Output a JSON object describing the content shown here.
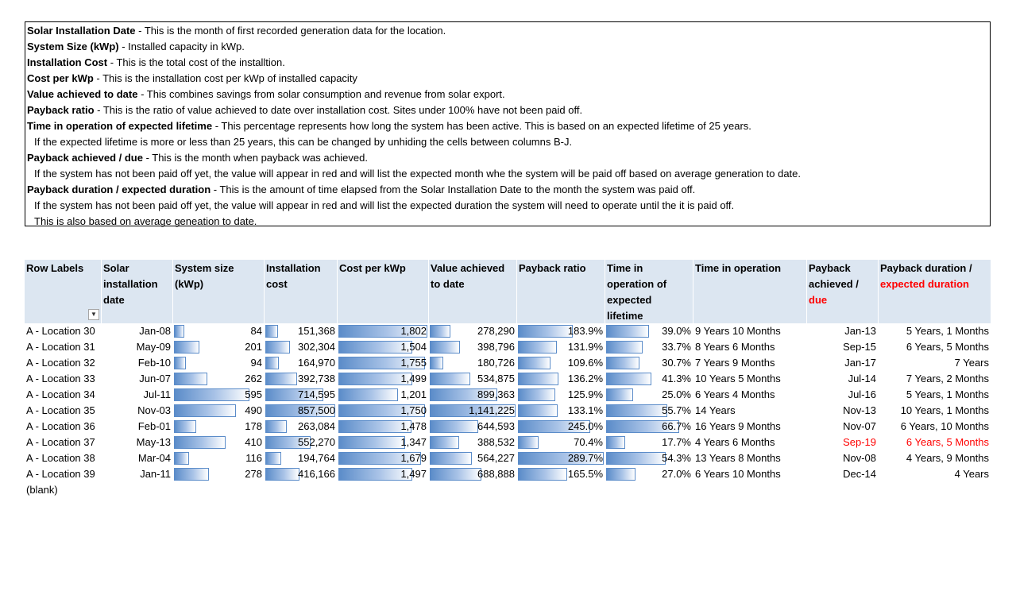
{
  "notes": [
    {
      "bold": "Solar Installation Date",
      "text": " - This is the month of first recorded generation data for the location.",
      "indent": false
    },
    {
      "bold": "System Size (kWp)",
      "text": " - Installed capacity in kWp.",
      "indent": false
    },
    {
      "bold": "Installation Cost",
      "text": " - This is the total cost of the installtion.",
      "indent": false
    },
    {
      "bold": "Cost per kWp",
      "text": " - This is the installation cost per kWp of installed capacity",
      "indent": false
    },
    {
      "bold": "Value achieved to date",
      "text": " - This combines savings from solar consumption and revenue from solar export.",
      "indent": false
    },
    {
      "bold": "Payback ratio",
      "text": " - This is the ratio of value achieved to date over installation cost. Sites under 100% have not been paid off.",
      "indent": false
    },
    {
      "bold": "Time in operation of expected lifetime",
      "text": " - This percentage represents how long the system has been active. This is based on an expected lifetime of 25 years.",
      "indent": false
    },
    {
      "bold": "",
      "text": "If the expected lifetime is more or less than 25 years, this can be changed by unhiding the cells between columns B-J.",
      "indent": true
    },
    {
      "bold": "Payback achieved / due",
      "text": " - This is the month when payback was achieved.",
      "indent": false
    },
    {
      "bold": "",
      "text": "If the system has not been paid off yet, the value will appear in red and will list the expected month whe the system will be paid off based on average generation to date.",
      "indent": true
    },
    {
      "bold": "Payback duration / expected duration",
      "text": " - This is the amount of time elapsed from the Solar Installation Date to the month the system was paid off.",
      "indent": false
    },
    {
      "bold": "",
      "text": "If the system has not been paid off yet, the value will appear in red and will list the expected duration the system will need to operate until the it is paid off.",
      "indent": true
    },
    {
      "bold": "",
      "text": "This is also based on average geneation to date.",
      "indent": true
    }
  ],
  "headers": {
    "row_labels": "Row Labels",
    "solar_date": [
      "Solar",
      "installation",
      "date"
    ],
    "system_size": [
      "System size",
      "(kWp)"
    ],
    "install_cost": [
      "Installation",
      "cost"
    ],
    "cost_per_kwp": [
      "Cost per kWp"
    ],
    "value_achieved": [
      "Value achieved",
      "to date"
    ],
    "payback_ratio": [
      "Payback ratio"
    ],
    "time_pct": [
      "Time in",
      "operation of",
      "expected",
      "lifetime"
    ],
    "time_op": [
      "Time in operation"
    ],
    "payback_ach": [
      "Payback",
      "achieved /"
    ],
    "payback_ach_red": "due",
    "payback_dur": [
      "Payback duration /"
    ],
    "payback_dur_red": "expected duration",
    "filter_icon": "dropdown-arrow"
  },
  "rows": [
    {
      "label": "A - Location 30",
      "date": "Jan-08",
      "size": "84",
      "size_v": 84,
      "cost": "151,368",
      "cost_v": 151368,
      "cpk": "1,802",
      "cpk_v": 1802,
      "value": "278,290",
      "value_v": 278290,
      "ratio": "183.9%",
      "ratio_v": 183.9,
      "time_pct": "39.0%",
      "time_op": "9 Years 10 Months",
      "payback": "Jan-13",
      "duration": "5 Years, 1 Months",
      "due": false
    },
    {
      "label": "A - Location 31",
      "date": "May-09",
      "size": "201",
      "size_v": 201,
      "cost": "302,304",
      "cost_v": 302304,
      "cpk": "1,504",
      "cpk_v": 1504,
      "value": "398,796",
      "value_v": 398796,
      "ratio": "131.9%",
      "ratio_v": 131.9,
      "time_pct": "33.7%",
      "time_op": "8 Years 6 Months",
      "payback": "Sep-15",
      "duration": "6 Years, 5 Months",
      "due": false
    },
    {
      "label": "A - Location 32",
      "date": "Feb-10",
      "size": "94",
      "size_v": 94,
      "cost": "164,970",
      "cost_v": 164970,
      "cpk": "1,755",
      "cpk_v": 1755,
      "value": "180,726",
      "value_v": 180726,
      "ratio": "109.6%",
      "ratio_v": 109.6,
      "time_pct": "30.7%",
      "time_op": "7 Years 9 Months",
      "payback": "Jan-17",
      "duration": "7 Years",
      "due": false
    },
    {
      "label": "A - Location 33",
      "date": "Jun-07",
      "size": "262",
      "size_v": 262,
      "cost": "392,738",
      "cost_v": 392738,
      "cpk": "1,499",
      "cpk_v": 1499,
      "value": "534,875",
      "value_v": 534875,
      "ratio": "136.2%",
      "ratio_v": 136.2,
      "time_pct": "41.3%",
      "time_op": "10 Years 5 Months",
      "payback": "Jul-14",
      "duration": "7 Years, 2 Months",
      "due": false
    },
    {
      "label": "A - Location 34",
      "date": "Jul-11",
      "size": "595",
      "size_v": 595,
      "cost": "714,595",
      "cost_v": 714595,
      "cpk": "1,201",
      "cpk_v": 1201,
      "value": "899,363",
      "value_v": 899363,
      "ratio": "125.9%",
      "ratio_v": 125.9,
      "time_pct": "25.0%",
      "time_op": "6 Years 4 Months",
      "payback": "Jul-16",
      "duration": "5 Years, 1 Months",
      "due": false
    },
    {
      "label": "A - Location 35",
      "date": "Nov-03",
      "size": "490",
      "size_v": 490,
      "cost": "857,500",
      "cost_v": 857500,
      "cpk": "1,750",
      "cpk_v": 1750,
      "value": "1,141,225",
      "value_v": 1141225,
      "ratio": "133.1%",
      "ratio_v": 133.1,
      "time_pct": "55.7%",
      "time_op": "14 Years",
      "payback": "Nov-13",
      "duration": "10 Years, 1 Months",
      "due": false
    },
    {
      "label": "A - Location 36",
      "date": "Feb-01",
      "size": "178",
      "size_v": 178,
      "cost": "263,084",
      "cost_v": 263084,
      "cpk": "1,478",
      "cpk_v": 1478,
      "value": "644,593",
      "value_v": 644593,
      "ratio": "245.0%",
      "ratio_v": 245.0,
      "time_pct": "66.7%",
      "time_op": "16 Years 9 Months",
      "payback": "Nov-07",
      "duration": "6 Years, 10 Months",
      "due": false
    },
    {
      "label": "A - Location 37",
      "date": "May-13",
      "size": "410",
      "size_v": 410,
      "cost": "552,270",
      "cost_v": 552270,
      "cpk": "1,347",
      "cpk_v": 1347,
      "value": "388,532",
      "value_v": 388532,
      "ratio": "70.4%",
      "ratio_v": 70.4,
      "time_pct": "17.7%",
      "time_op": "4 Years 6 Months",
      "payback": "Sep-19",
      "duration": "6 Years, 5 Months",
      "due": true
    },
    {
      "label": "A - Location 38",
      "date": "Mar-04",
      "size": "116",
      "size_v": 116,
      "cost": "194,764",
      "cost_v": 194764,
      "cpk": "1,679",
      "cpk_v": 1679,
      "value": "564,227",
      "value_v": 564227,
      "ratio": "289.7%",
      "ratio_v": 289.7,
      "time_pct": "54.3%",
      "time_op": "13 Years 8 Months",
      "payback": "Nov-08",
      "duration": "4 Years, 9 Months",
      "due": false
    },
    {
      "label": "A - Location 39",
      "date": "Jan-11",
      "size": "278",
      "size_v": 278,
      "cost": "416,166",
      "cost_v": 416166,
      "cpk": "1,497",
      "cpk_v": 1497,
      "value": "688,888",
      "value_v": 688888,
      "ratio": "165.5%",
      "ratio_v": 165.5,
      "time_pct": "27.0%",
      "time_op": "6 Years 10 Months",
      "payback": "Dec-14",
      "duration": "4 Years",
      "due": false
    }
  ],
  "blank_label": "(blank)",
  "colors": {
    "header_bg": "#dce6f1",
    "bar_start": "#5b8cc9",
    "bar_mid": "#a9c3e7",
    "due_red": "#ff0000"
  }
}
